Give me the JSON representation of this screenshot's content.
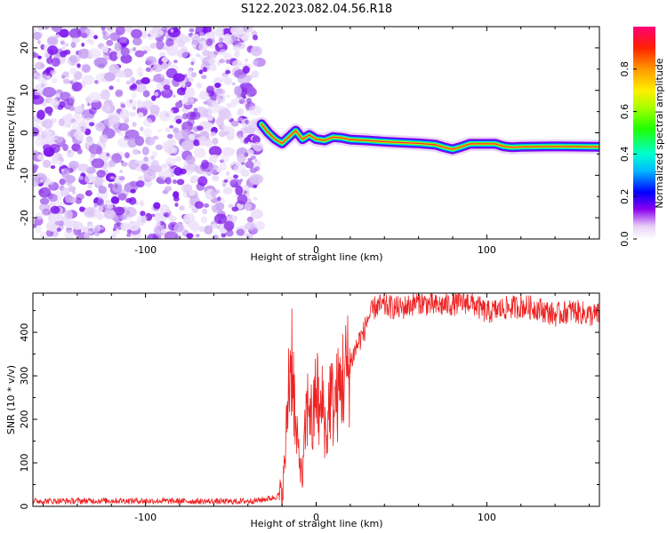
{
  "figure": {
    "title": "S122.2023.082.04.56.R18"
  },
  "chart_data": [
    {
      "type": "heatmap",
      "panel": "spectrogram",
      "xlabel": "Height of straight line (km)",
      "ylabel": "Frequency (Hz)",
      "xlim": [
        -166,
        166
      ],
      "ylim": [
        -25,
        25
      ],
      "x_ticks": [
        -100,
        0,
        100
      ],
      "x_tick_labels": [
        "-100",
        "0",
        "100"
      ],
      "y_ticks": [
        -20,
        -10,
        0,
        10,
        20
      ],
      "y_tick_labels": [
        "-20",
        "-10",
        "0",
        "10",
        "20"
      ],
      "noise_region": {
        "x_from": -166,
        "x_to": -33
      },
      "signal_track": [
        {
          "x": -32,
          "y": 2
        },
        {
          "x": -28,
          "y": 0
        },
        {
          "x": -24,
          "y": -1.5
        },
        {
          "x": -20,
          "y": -2.5
        },
        {
          "x": -16,
          "y": -1
        },
        {
          "x": -12,
          "y": 0.5
        },
        {
          "x": -8,
          "y": -1.5
        },
        {
          "x": -4,
          "y": -0.5
        },
        {
          "x": 0,
          "y": -1.5
        },
        {
          "x": 5,
          "y": -1.8
        },
        {
          "x": 10,
          "y": -1
        },
        {
          "x": 15,
          "y": -1.2
        },
        {
          "x": 20,
          "y": -1.6
        },
        {
          "x": 30,
          "y": -1.8
        },
        {
          "x": 40,
          "y": -2.1
        },
        {
          "x": 50,
          "y": -2.3
        },
        {
          "x": 60,
          "y": -2.5
        },
        {
          "x": 70,
          "y": -2.8
        },
        {
          "x": 75,
          "y": -3.4
        },
        {
          "x": 80,
          "y": -3.9
        },
        {
          "x": 85,
          "y": -3.3
        },
        {
          "x": 90,
          "y": -2.6
        },
        {
          "x": 100,
          "y": -2.6
        },
        {
          "x": 105,
          "y": -2.6
        },
        {
          "x": 110,
          "y": -3.2
        },
        {
          "x": 115,
          "y": -3.4
        },
        {
          "x": 120,
          "y": -3.3
        },
        {
          "x": 140,
          "y": -3.2
        },
        {
          "x": 166,
          "y": -3.3
        }
      ],
      "colorbar": {
        "label": "Normalized spectral amplitude",
        "range": [
          0,
          1
        ],
        "ticks": [
          0.0,
          0.2,
          0.4,
          0.6,
          0.8
        ],
        "tick_labels": [
          "0.0",
          "0.2",
          "0.4",
          "0.6",
          "0.8"
        ]
      }
    },
    {
      "type": "line",
      "panel": "snr",
      "xlabel": "Height of straight line (km)",
      "ylabel": "SNR (10 * v/v)",
      "xlim": [
        -166,
        166
      ],
      "ylim": [
        0,
        490
      ],
      "x_ticks": [
        -100,
        0,
        100
      ],
      "x_tick_labels": [
        "-100",
        "0",
        "100"
      ],
      "y_ticks": [
        0,
        100,
        200,
        300,
        400
      ],
      "y_tick_labels": [
        "0",
        "100",
        "200",
        "300",
        "400"
      ],
      "color": "#ee2222",
      "series": [
        {
          "x": [
            -166,
            -120,
            -80,
            -50,
            -35,
            -25,
            -20,
            -18,
            -16,
            -14,
            -12,
            -10,
            -8,
            -6,
            -4,
            -2,
            0,
            2,
            4,
            6,
            8,
            10,
            12,
            14,
            16,
            18,
            20,
            22,
            25,
            28,
            30,
            35,
            40,
            50,
            60,
            70,
            80,
            90,
            100,
            110,
            120,
            130,
            140,
            150,
            160,
            166
          ],
          "y": [
            12,
            13,
            12,
            11,
            13,
            20,
            28,
            120,
            300,
            360,
            160,
            120,
            60,
            200,
            250,
            170,
            290,
            200,
            240,
            150,
            260,
            230,
            250,
            270,
            300,
            310,
            330,
            350,
            380,
            400,
            430,
            460,
            460,
            455,
            470,
            460,
            465,
            470,
            445,
            455,
            460,
            455,
            440,
            450,
            440,
            440
          ]
        }
      ]
    }
  ]
}
